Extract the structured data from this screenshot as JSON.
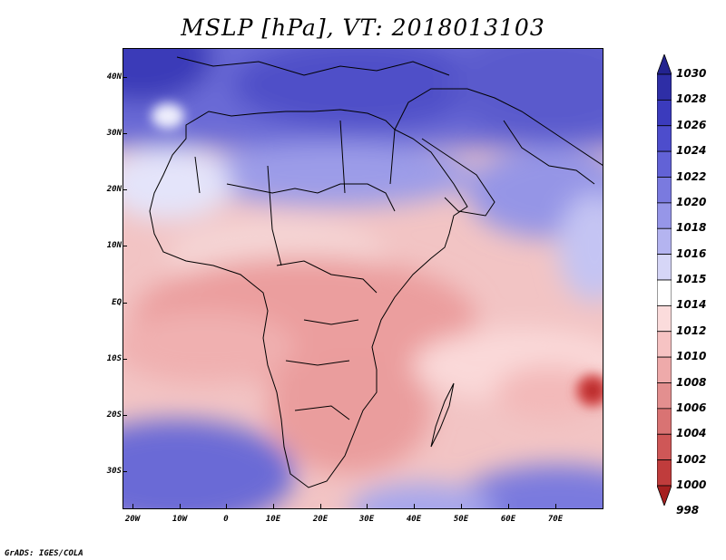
{
  "title": "MSLP [hPa], VT: 2018013103",
  "footer": "GrADS: IGES/COLA",
  "map": {
    "lat_labels": [
      "40N",
      "30N",
      "20N",
      "10N",
      "EQ",
      "10S",
      "20S",
      "30S"
    ],
    "lon_labels": [
      "20W",
      "10W",
      "0",
      "10E",
      "20E",
      "30E",
      "40E",
      "50E",
      "60E",
      "70E"
    ],
    "lat_values": [
      40,
      30,
      20,
      10,
      0,
      -10,
      -20,
      -30
    ],
    "lon_values": [
      -20,
      -10,
      0,
      10,
      20,
      30,
      40,
      50,
      60,
      70
    ]
  },
  "colorbar": {
    "levels": [
      "1030",
      "1028",
      "1026",
      "1024",
      "1022",
      "1020",
      "1018",
      "1016",
      "1015",
      "1014",
      "1012",
      "1010",
      "1008",
      "1006",
      "1004",
      "1002",
      "1000",
      "998"
    ],
    "colors": [
      "#23238f",
      "#2e2ea6",
      "#3b3bbd",
      "#4d4dcc",
      "#6262d6",
      "#7a7adf",
      "#9696e8",
      "#b4b4f0",
      "#d6d6f7",
      "#ffffff",
      "#fbdcdc",
      "#f6c3c3",
      "#eeaaaa",
      "#e38f8f",
      "#d97373",
      "#cf5757",
      "#c03c3c",
      "#a62020"
    ]
  }
}
